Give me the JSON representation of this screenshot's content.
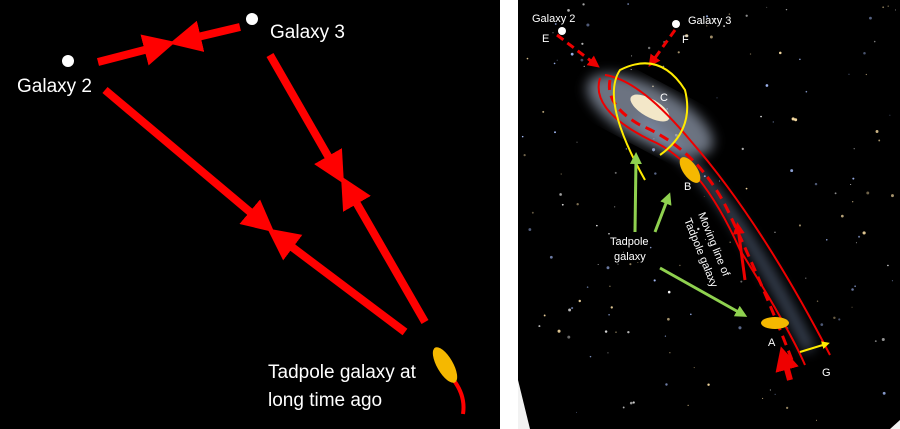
{
  "left_panel": {
    "galaxy_2": "Galaxy 2",
    "galaxy_3": "Galaxy 3",
    "tadpole_label": [
      "Tadpole galaxy at",
      "long time ago"
    ]
  },
  "right_panel": {
    "galaxy_2": "Galaxy 2",
    "galaxy_3": "Galaxy 3",
    "points": {
      "E": "E",
      "F": "F",
      "C": "C",
      "B": "B",
      "A": "A",
      "G": "G"
    },
    "tadpole_label": [
      "Tadpole",
      "galaxy"
    ],
    "moving_line_label": [
      "Moving line of",
      "Tadpole galaxy"
    ]
  }
}
